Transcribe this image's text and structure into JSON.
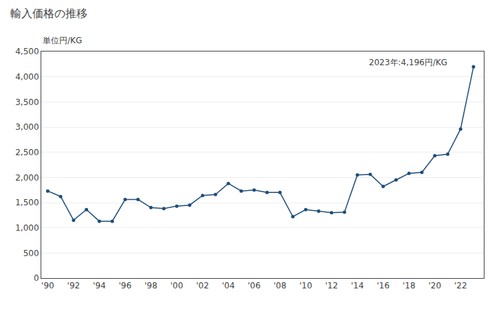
{
  "chart_data": {
    "type": "line",
    "title": "輸入価格の推移",
    "ylabel": "単位円/KG",
    "annotation": "2023年:4,196円/KG",
    "x": [
      1990,
      1991,
      1992,
      1993,
      1994,
      1995,
      1996,
      1997,
      1998,
      1999,
      2000,
      2001,
      2002,
      2003,
      2004,
      2005,
      2006,
      2007,
      2008,
      2009,
      2010,
      2011,
      2012,
      2013,
      2014,
      2015,
      2016,
      2017,
      2018,
      2019,
      2020,
      2021,
      2022,
      2023
    ],
    "values": [
      1730,
      1620,
      1150,
      1360,
      1130,
      1130,
      1560,
      1560,
      1400,
      1380,
      1430,
      1450,
      1640,
      1660,
      1880,
      1730,
      1750,
      1700,
      1700,
      1220,
      1360,
      1330,
      1300,
      1310,
      2050,
      2060,
      1820,
      1950,
      2080,
      2100,
      2430,
      2460,
      2960,
      4196
    ],
    "color": "#1f4e79",
    "marker": "circle",
    "xlim": [
      1989.5,
      2023.8
    ],
    "xticks": [
      {
        "value": 1990,
        "label": "'90"
      },
      {
        "value": 1992,
        "label": "'92"
      },
      {
        "value": 1994,
        "label": "'94"
      },
      {
        "value": 1996,
        "label": "'96"
      },
      {
        "value": 1998,
        "label": "'98"
      },
      {
        "value": 2000,
        "label": "'00"
      },
      {
        "value": 2002,
        "label": "'02"
      },
      {
        "value": 2004,
        "label": "'04"
      },
      {
        "value": 2006,
        "label": "'06"
      },
      {
        "value": 2008,
        "label": "'08"
      },
      {
        "value": 2010,
        "label": "'10"
      },
      {
        "value": 2012,
        "label": "'12"
      },
      {
        "value": 2014,
        "label": "'14"
      },
      {
        "value": 2016,
        "label": "'16"
      },
      {
        "value": 2018,
        "label": "'18"
      },
      {
        "value": 2020,
        "label": "'20"
      },
      {
        "value": 2022,
        "label": "'22"
      }
    ],
    "ylim": [
      0,
      4500
    ],
    "yticks": [
      0,
      500,
      {
        "value": 1000,
        "label": "1,000"
      },
      {
        "value": 1500,
        "label": "1,500"
      },
      {
        "value": 2000,
        "label": "2,000"
      },
      {
        "value": 2500,
        "label": "2,500"
      },
      {
        "value": 3000,
        "label": "3,000"
      },
      {
        "value": 3500,
        "label": "3,500"
      },
      {
        "value": 4000,
        "label": "4,000"
      },
      {
        "value": 4500,
        "label": "4,500"
      }
    ],
    "grid": true
  }
}
